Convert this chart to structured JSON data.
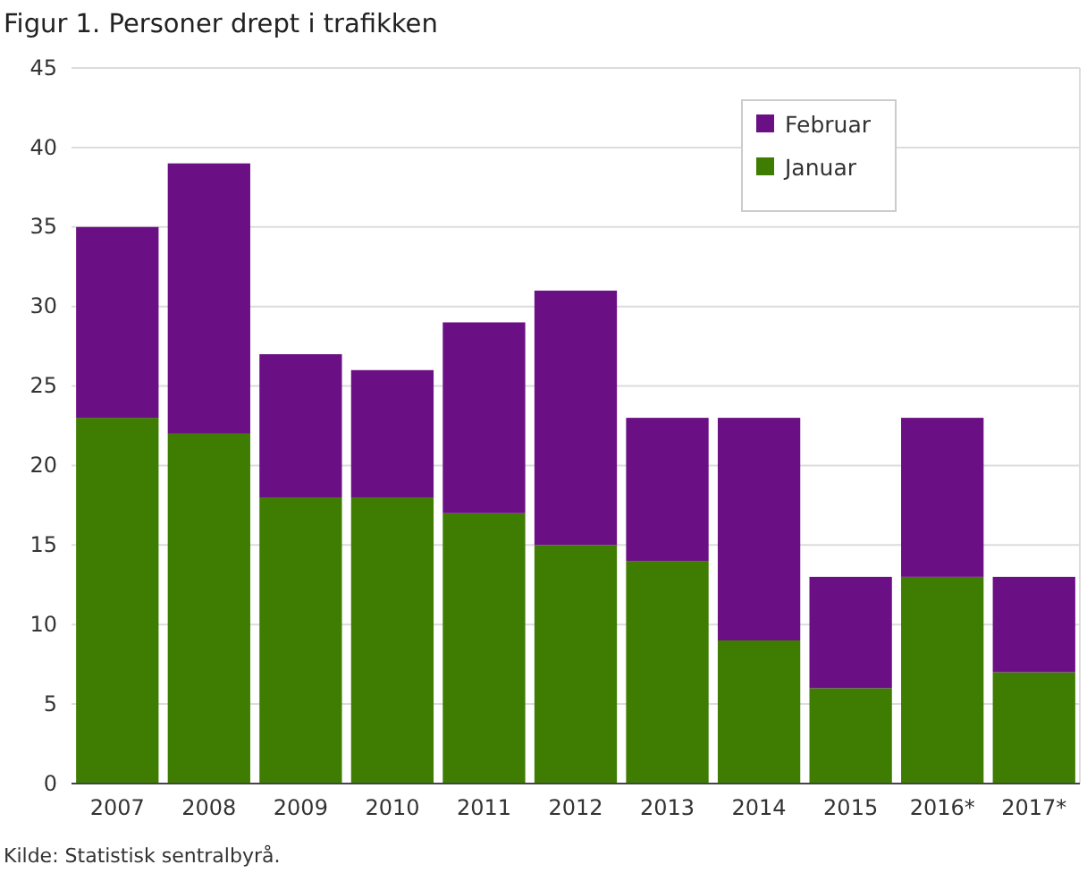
{
  "chart_data": {
    "type": "bar",
    "title": "Figur 1. Personer drept i trafikken",
    "categories": [
      "2007",
      "2008",
      "2009",
      "2010",
      "2011",
      "2012",
      "2013",
      "2014",
      "2015",
      "2016*",
      "2017*"
    ],
    "series": [
      {
        "name": "Januar",
        "color": "#3e7d02",
        "values": [
          23,
          22,
          18,
          18,
          17,
          15,
          14,
          9,
          6,
          13,
          7
        ]
      },
      {
        "name": "Februar",
        "color": "#6b0f85",
        "values": [
          12,
          17,
          9,
          8,
          12,
          16,
          9,
          14,
          7,
          10,
          6
        ]
      }
    ],
    "stacked": true,
    "ylim": [
      0,
      45
    ],
    "yticks": [
      0,
      5,
      10,
      15,
      20,
      25,
      30,
      35,
      40,
      45
    ],
    "grid": "y",
    "legend": "top right",
    "annotations": [
      "Kilde: Statistisk sentralbyrå."
    ]
  }
}
